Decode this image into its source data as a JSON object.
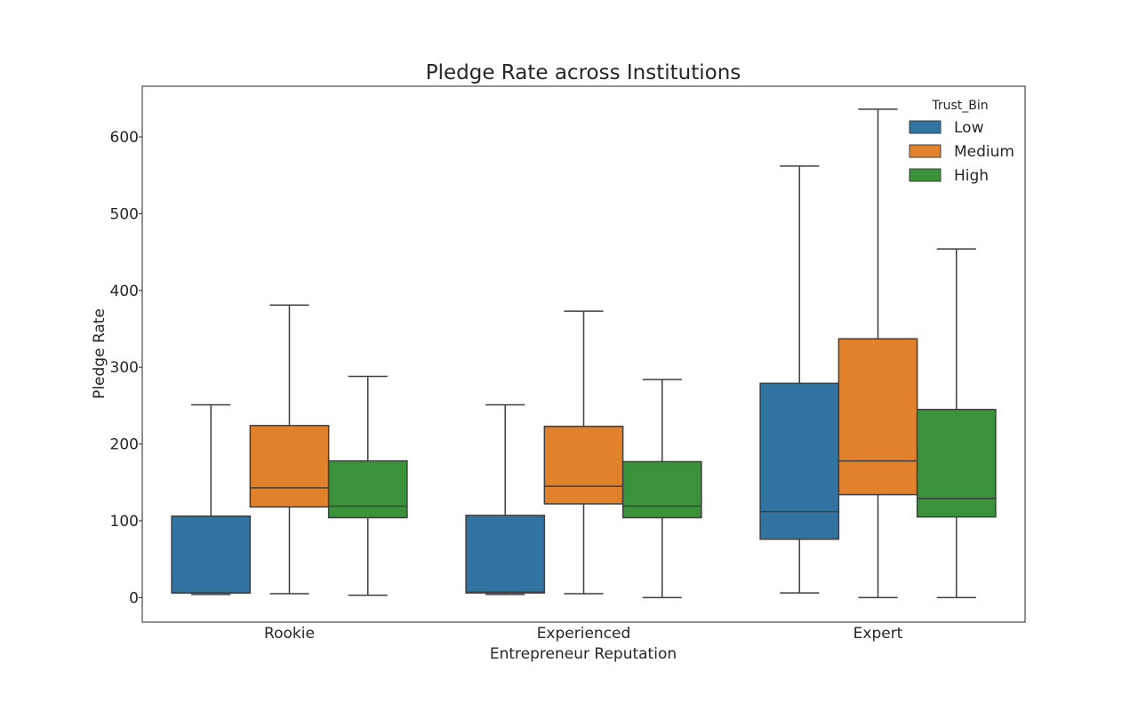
{
  "chart_data": {
    "type": "box",
    "title": "Pledge Rate across Institutions",
    "xlabel": "Entrepreneur Reputation",
    "ylabel": "Pledge Rate",
    "ylim": [
      -32,
      666
    ],
    "yticks": [
      0,
      100,
      200,
      300,
      400,
      500,
      600
    ],
    "categories": [
      "Rookie",
      "Experienced",
      "Expert"
    ],
    "grid": false,
    "legend": {
      "title": "Trust_Bin",
      "position": "top-right"
    },
    "series": [
      {
        "name": "Low",
        "color": "#3274a1",
        "boxes": [
          {
            "whislo": 4,
            "q1": 6,
            "med": 6,
            "q3": 106,
            "whishi": 251
          },
          {
            "whislo": 4,
            "q1": 6,
            "med": 7,
            "q3": 107,
            "whishi": 251
          },
          {
            "whislo": 6,
            "q1": 76,
            "med": 112,
            "q3": 279,
            "whishi": 562
          }
        ]
      },
      {
        "name": "Medium",
        "color": "#e1812c",
        "boxes": [
          {
            "whislo": 5,
            "q1": 118,
            "med": 143,
            "q3": 224,
            "whishi": 381
          },
          {
            "whislo": 5,
            "q1": 122,
            "med": 145,
            "q3": 223,
            "whishi": 373
          },
          {
            "whislo": 0,
            "q1": 134,
            "med": 178,
            "q3": 337,
            "whishi": 636
          }
        ]
      },
      {
        "name": "High",
        "color": "#3a923a",
        "boxes": [
          {
            "whislo": 3,
            "q1": 104,
            "med": 119,
            "q3": 178,
            "whishi": 288
          },
          {
            "whislo": 0,
            "q1": 104,
            "med": 119,
            "q3": 177,
            "whishi": 284
          },
          {
            "whislo": 0,
            "q1": 105,
            "med": 129,
            "q3": 245,
            "whishi": 454
          }
        ]
      }
    ]
  }
}
